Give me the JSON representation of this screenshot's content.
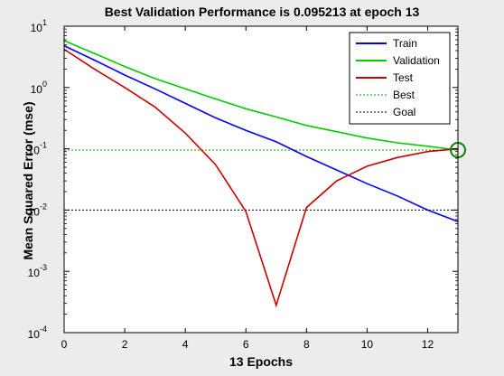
{
  "chart_data": {
    "type": "line",
    "title": "Best Validation Performance is 0.095213 at epoch 13",
    "xlabel": "13 Epochs",
    "ylabel": "Mean Squared Error  (mse)",
    "xlim": [
      0,
      13
    ],
    "ylim": [
      0.0001,
      10
    ],
    "yscale": "log",
    "x_ticks": [
      0,
      2,
      4,
      6,
      8,
      10,
      12
    ],
    "y_ticks": [
      {
        "value": 0.0001,
        "base": "10",
        "exp": "-4"
      },
      {
        "value": 0.001,
        "base": "10",
        "exp": "-3"
      },
      {
        "value": 0.01,
        "base": "10",
        "exp": "-2"
      },
      {
        "value": 0.1,
        "base": "10",
        "exp": "-1"
      },
      {
        "value": 1,
        "base": "10",
        "exp": "0"
      },
      {
        "value": 10,
        "base": "10",
        "exp": "1"
      }
    ],
    "grid": false,
    "legend_position": "top-right",
    "series": [
      {
        "name": "Train",
        "color": "#0000ff",
        "style": "solid",
        "x": [
          0,
          1,
          2,
          3,
          4,
          5,
          6,
          7,
          8,
          9,
          10,
          11,
          12,
          13
        ],
        "y": [
          4.8,
          2.8,
          1.6,
          0.95,
          0.55,
          0.32,
          0.2,
          0.13,
          0.075,
          0.045,
          0.027,
          0.017,
          0.01,
          0.0065
        ]
      },
      {
        "name": "Validation",
        "color": "#00cc00",
        "style": "solid",
        "x": [
          0,
          1,
          2,
          3,
          4,
          5,
          6,
          7,
          8,
          9,
          10,
          11,
          12,
          13
        ],
        "y": [
          5.8,
          3.6,
          2.2,
          1.4,
          0.95,
          0.65,
          0.45,
          0.33,
          0.24,
          0.19,
          0.15,
          0.125,
          0.11,
          0.095213
        ]
      },
      {
        "name": "Test",
        "color": "#cc0000",
        "style": "solid",
        "x": [
          0,
          1,
          2,
          3,
          4,
          5,
          6,
          7,
          8,
          9,
          10,
          11,
          12,
          13
        ],
        "y": [
          4.2,
          2.0,
          1.0,
          0.48,
          0.18,
          0.055,
          0.0095,
          0.00028,
          0.011,
          0.03,
          0.052,
          0.072,
          0.09,
          0.1
        ]
      },
      {
        "name": "Best",
        "color": "#00aa00",
        "style": "dotted",
        "kind": "best",
        "x_value": 13,
        "y_value": 0.095213
      },
      {
        "name": "Goal",
        "color": "#000000",
        "style": "dotted",
        "kind": "goal",
        "y_value": 0.01
      }
    ],
    "best_marker": {
      "x": 13,
      "y": 0.095213,
      "color": "#008800"
    }
  }
}
